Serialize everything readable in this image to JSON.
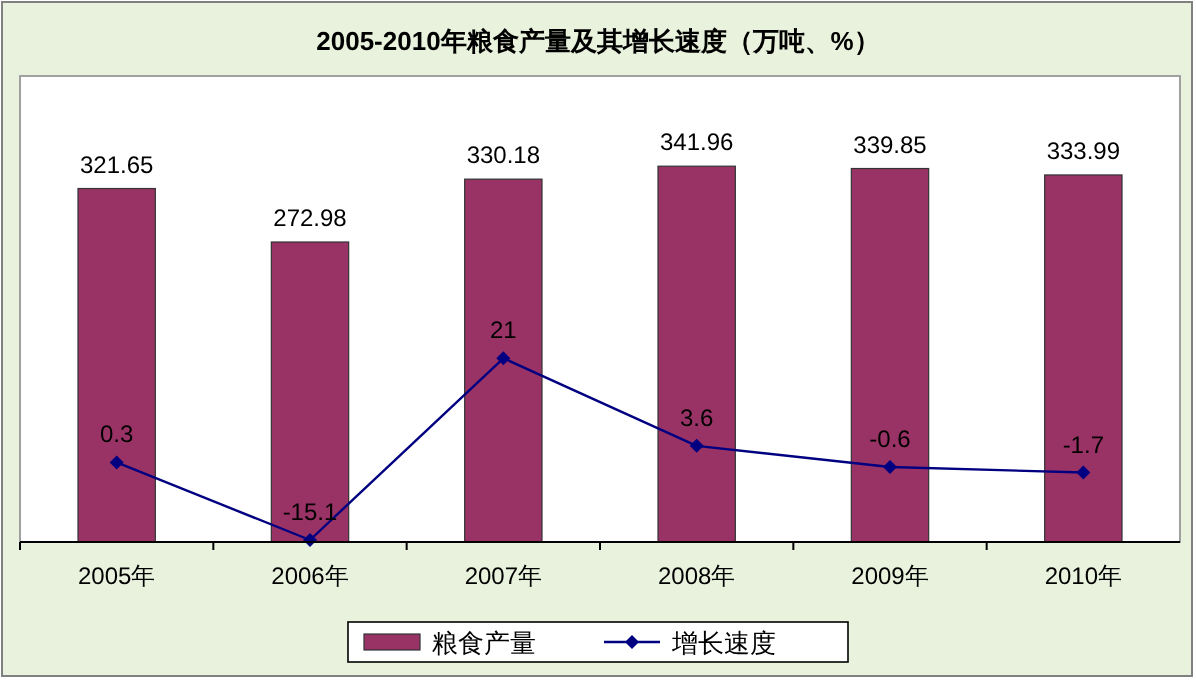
{
  "chart_data": {
    "type": "bar",
    "title": "2005-2010年粮食产量及其增长速度（万吨、%）",
    "categories": [
      "2005年",
      "2006年",
      "2007年",
      "2008年",
      "2009年",
      "2010年"
    ],
    "series": [
      {
        "name": "粮食产量",
        "color": "#993366",
        "values": [
          321.65,
          272.98,
          330.18,
          341.96,
          339.85,
          333.99
        ]
      },
      {
        "name": "增长速度",
        "type": "line",
        "axis": "y2",
        "color": "#000080",
        "values": [
          0.3,
          -15.1,
          21,
          3.6,
          -0.6,
          -1.7
        ]
      }
    ],
    "data_labels": true,
    "legend": "bottom",
    "marker": "diamond",
    "line_style": "solid",
    "grid": false
  }
}
